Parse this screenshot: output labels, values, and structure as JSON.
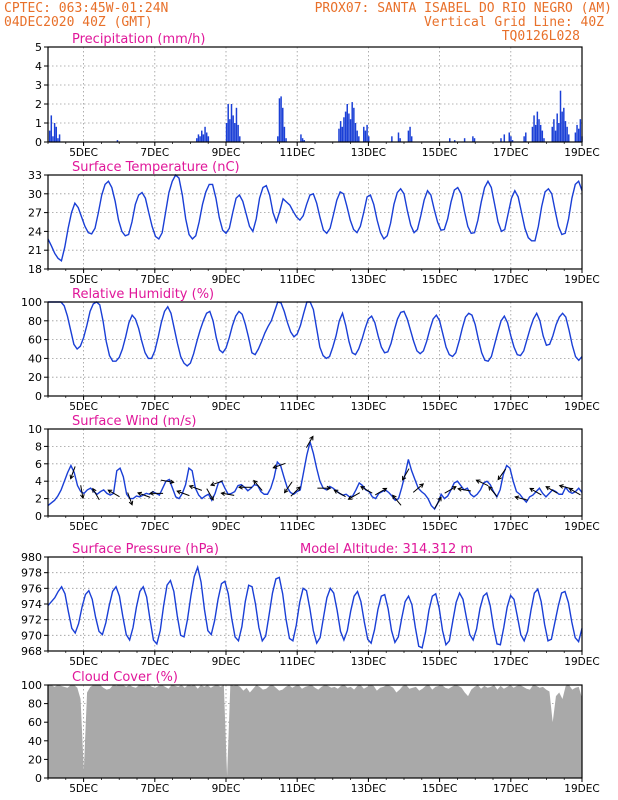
{
  "header": {
    "line1_left": "CPTEC:  063:45W-01:24N",
    "line1_right": "PROX07: SANTA ISABEL DO RIO NEGRO (AM)",
    "line2_left": "04DEC2020 40Z (GMT)",
    "line2_right": "Vertical Grid Line: 40Z",
    "line3_right": "TQ0126L028",
    "header_color": "#e8702a"
  },
  "colors": {
    "line": "#1a3fd6",
    "bar": "#1a3fd6",
    "title": "#e0179a",
    "cloud": "#a9a9a9",
    "arrow": "#000000"
  },
  "x_axis": {
    "start_day": 4,
    "end_day": 19,
    "tick_labels": [
      "5DEC",
      "7DEC",
      "9DEC",
      "11DEC",
      "13DEC",
      "15DEC",
      "17DEC",
      "19DEC"
    ],
    "tick_days": [
      5,
      7,
      9,
      11,
      13,
      15,
      17,
      19
    ]
  },
  "chart_data": [
    {
      "type": "bar",
      "title": "Precipitation (mm/h)",
      "ylim": [
        0,
        5
      ],
      "yticks": [
        "0",
        "1",
        "2",
        "3",
        "4",
        "5"
      ],
      "day_range": [
        4,
        19
      ],
      "values": [
        0,
        0.6,
        1.4,
        0.3,
        1.0,
        0.8,
        0.2,
        0.4,
        0,
        0,
        0,
        0,
        0,
        0,
        0,
        0,
        0,
        0,
        0,
        0,
        0,
        0,
        0,
        0,
        0,
        0,
        0,
        0,
        0,
        0,
        0,
        0,
        0,
        0,
        0,
        0,
        0,
        0,
        0,
        0,
        0,
        0,
        0.1,
        0,
        0,
        0,
        0,
        0,
        0,
        0,
        0,
        0,
        0,
        0,
        0,
        0,
        0,
        0,
        0,
        0,
        0,
        0,
        0,
        0,
        0,
        0,
        0,
        0,
        0,
        0,
        0,
        0,
        0,
        0,
        0,
        0,
        0,
        0,
        0,
        0,
        0,
        0,
        0,
        0,
        0,
        0,
        0,
        0,
        0,
        0,
        0.2,
        0.4,
        0.3,
        0.6,
        0.4,
        0.8,
        0.5,
        0.3,
        0,
        0,
        0,
        0,
        0,
        0,
        0,
        0,
        0,
        0,
        1.0,
        2.0,
        1.2,
        2.0,
        1.4,
        1.0,
        1.8,
        0.9,
        0.3,
        0,
        0,
        0,
        0,
        0,
        0,
        0,
        0,
        0,
        0,
        0,
        0,
        0,
        0,
        0,
        0,
        0,
        0,
        0,
        0,
        0,
        0,
        0.3,
        2.3,
        2.4,
        1.8,
        0.8,
        0.2,
        0,
        0,
        0,
        0,
        0,
        0,
        0,
        0,
        0.4,
        0.2,
        0.1,
        0,
        0,
        0,
        0,
        0,
        0,
        0,
        0,
        0,
        0,
        0,
        0,
        0,
        0,
        0,
        0,
        0,
        0,
        0,
        0,
        0.7,
        1.1,
        0.8,
        1.3,
        1.6,
        2.0,
        1.5,
        1.2,
        2.1,
        1.8,
        1.0,
        0.6,
        0.3,
        0,
        0,
        0.8,
        0.6,
        0.9,
        0.3,
        0,
        0,
        0,
        0,
        0,
        0,
        0,
        0,
        0,
        0,
        0,
        0,
        0,
        0.3,
        0,
        0,
        0,
        0.5,
        0.2,
        0,
        0,
        0,
        0,
        0.6,
        0.8,
        0.3,
        0,
        0,
        0,
        0,
        0,
        0,
        0,
        0,
        0,
        0,
        0,
        0,
        0,
        0,
        0,
        0,
        0,
        0,
        0,
        0,
        0,
        0,
        0.2,
        0,
        0,
        0.1,
        0,
        0,
        0,
        0,
        0,
        0.2,
        0,
        0,
        0,
        0,
        0.3,
        0.2,
        0,
        0,
        0,
        0,
        0,
        0,
        0,
        0,
        0,
        0,
        0,
        0,
        0,
        0,
        0,
        0.2,
        0,
        0.4,
        0,
        0,
        0.5,
        0.3,
        0.1,
        0,
        0,
        0,
        0,
        0,
        0,
        0.3,
        0.5,
        0,
        0,
        0,
        0.8,
        1.4,
        0.9,
        1.6,
        1.2,
        0.9,
        0.6,
        0.2,
        0,
        0,
        0,
        0,
        0.8,
        1.2,
        0.6,
        1.5,
        1.0,
        2.7,
        1.6,
        1.8,
        1.1,
        0.8,
        0.4,
        0,
        0,
        0,
        0.5,
        0.9,
        0.7,
        1.2,
        0.3
      ]
    },
    {
      "type": "line",
      "title": "Surface Temperature (nC)",
      "ylim": [
        18,
        33
      ],
      "yticks": [
        "18",
        "21",
        "24",
        "27",
        "30",
        "33"
      ],
      "day_range": [
        4,
        19
      ],
      "values": [
        22.8,
        21.7,
        20.5,
        19.7,
        19.3,
        21.5,
        24.5,
        27.0,
        28.5,
        27.8,
        26.3,
        24.8,
        23.8,
        23.6,
        24.5,
        27.0,
        29.8,
        31.5,
        32.0,
        31.0,
        28.8,
        25.8,
        24.0,
        23.3,
        23.5,
        25.5,
        28.3,
        29.8,
        30.2,
        29.3,
        27.0,
        24.8,
        23.2,
        22.8,
        23.8,
        27.0,
        30.2,
        32.0,
        33.0,
        32.5,
        29.8,
        26.0,
        23.5,
        22.8,
        23.3,
        25.5,
        28.3,
        30.3,
        31.5,
        31.5,
        29.3,
        26.2,
        24.2,
        23.7,
        24.5,
        27.0,
        29.3,
        29.8,
        28.8,
        26.8,
        24.8,
        24.0,
        26.0,
        29.3,
        31.0,
        31.3,
        29.8,
        27.0,
        25.5,
        27.2,
        29.2,
        28.7,
        28.2,
        27.2,
        26.3,
        25.8,
        26.5,
        28.3,
        29.8,
        30.0,
        28.5,
        26.2,
        24.2,
        23.7,
        24.5,
        26.7,
        29.0,
        30.3,
        30.0,
        28.0,
        25.8,
        24.3,
        23.8,
        24.8,
        27.0,
        29.5,
        29.8,
        28.3,
        25.8,
        23.8,
        22.8,
        23.3,
        25.3,
        28.3,
        30.2,
        30.8,
        30.0,
        27.3,
        25.0,
        23.8,
        24.3,
        26.5,
        29.0,
        30.5,
        29.8,
        27.5,
        25.5,
        24.2,
        24.3,
        26.0,
        28.7,
        30.6,
        31.0,
        30.0,
        27.2,
        24.8,
        23.7,
        23.8,
        25.8,
        28.7,
        31.0,
        32.0,
        31.0,
        28.3,
        25.5,
        24.0,
        24.3,
        26.8,
        29.3,
        30.5,
        29.5,
        27.0,
        24.5,
        23.0,
        22.5,
        22.5,
        24.8,
        28.0,
        30.3,
        30.8,
        30.0,
        27.3,
        24.8,
        23.5,
        23.7,
        26.0,
        29.3,
        31.5,
        32.0,
        30.5
      ]
    },
    {
      "type": "line",
      "title": "Relative Humidity (%)",
      "ylim": [
        0,
        100
      ],
      "yticks": [
        "0",
        "20",
        "40",
        "60",
        "80",
        "100"
      ],
      "day_range": [
        4,
        19
      ],
      "values": [
        100,
        100,
        100,
        100,
        100,
        96,
        85,
        70,
        55,
        50,
        53,
        62,
        75,
        90,
        98,
        100,
        97,
        80,
        58,
        43,
        37,
        37,
        41,
        50,
        63,
        78,
        86,
        82,
        72,
        58,
        46,
        40,
        40,
        48,
        62,
        78,
        90,
        95,
        88,
        72,
        56,
        42,
        35,
        32,
        35,
        45,
        58,
        70,
        80,
        88,
        90,
        80,
        62,
        49,
        46,
        51,
        62,
        75,
        85,
        90,
        87,
        76,
        62,
        46,
        44,
        50,
        58,
        67,
        74,
        80,
        90,
        100,
        99,
        90,
        78,
        68,
        63,
        66,
        75,
        88,
        100,
        100,
        92,
        72,
        52,
        43,
        40,
        42,
        52,
        64,
        80,
        88,
        75,
        58,
        46,
        44,
        50,
        60,
        72,
        82,
        85,
        78,
        64,
        52,
        46,
        47,
        56,
        70,
        82,
        89,
        90,
        82,
        70,
        58,
        48,
        45,
        48,
        58,
        71,
        82,
        86,
        80,
        66,
        52,
        44,
        42,
        46,
        58,
        72,
        84,
        88,
        86,
        76,
        60,
        46,
        38,
        37,
        42,
        55,
        68,
        80,
        85,
        78,
        64,
        52,
        44,
        43,
        48,
        60,
        72,
        82,
        88,
        80,
        64,
        54,
        55,
        64,
        76,
        84,
        88,
        84,
        70,
        54,
        42,
        38,
        42
      ]
    },
    {
      "type": "line",
      "title": "Surface Wind (m/s)",
      "ylim": [
        0,
        10
      ],
      "yticks": [
        "0",
        "2",
        "4",
        "6",
        "8",
        "10"
      ],
      "day_range": [
        4,
        19
      ],
      "values": [
        1.2,
        1.5,
        1.8,
        2.3,
        3.0,
        4.0,
        5.0,
        5.8,
        5.0,
        3.5,
        2.8,
        2.6,
        3.0,
        3.2,
        2.8,
        2.5,
        2.8,
        3.0,
        2.6,
        2.4,
        2.6,
        5.2,
        5.5,
        4.5,
        2.5,
        2.0,
        2.0,
        2.3,
        2.2,
        2.4,
        2.6,
        2.5,
        2.8,
        2.6,
        2.4,
        3.2,
        4.0,
        4.2,
        3.2,
        2.2,
        2.0,
        2.6,
        3.6,
        5.5,
        5.2,
        3.2,
        2.4,
        2.0,
        2.3,
        2.5,
        1.8,
        2.6,
        3.8,
        4.0,
        3.2,
        2.5,
        2.6,
        2.8,
        3.5,
        3.6,
        3.3,
        2.9,
        3.2,
        3.6,
        3.5,
        2.8,
        2.5,
        2.5,
        3.2,
        4.4,
        6.2,
        5.8,
        4.5,
        3.3,
        2.7,
        2.5,
        2.8,
        3.0,
        5.0,
        7.0,
        8.5,
        7.2,
        5.5,
        4.0,
        3.2,
        3.0,
        3.4,
        3.2,
        2.9,
        2.6,
        2.4,
        2.5,
        2.2,
        2.3,
        3.0,
        3.8,
        3.5,
        3.0,
        2.8,
        2.2,
        2.0,
        2.6,
        2.8,
        3.0,
        2.7,
        2.3,
        1.8,
        2.0,
        3.3,
        4.8,
        6.5,
        5.2,
        4.2,
        3.2,
        2.8,
        2.5,
        2.0,
        1.2,
        0.8,
        1.5,
        2.5,
        2.0,
        2.3,
        3.0,
        3.8,
        4.0,
        3.5,
        3.0,
        3.2,
        2.5,
        2.2,
        2.5,
        3.0,
        3.8,
        4.0,
        3.6,
        2.8,
        2.2,
        3.0,
        4.8,
        5.8,
        5.5,
        4.0,
        2.8,
        2.5,
        2.0,
        1.6,
        2.2,
        2.4,
        2.8,
        3.2,
        2.6,
        2.2,
        2.6,
        3.0,
        2.8,
        2.5,
        2.5,
        3.3,
        2.8,
        2.6,
        2.8,
        3.2,
        2.7
      ],
      "arrows": [
        {
          "day": 4.7,
          "dir": 200
        },
        {
          "day": 4.95,
          "dir": 170
        },
        {
          "day": 5.35,
          "dir": 330
        },
        {
          "day": 5.85,
          "dir": 300
        },
        {
          "day": 6.3,
          "dir": 160
        },
        {
          "day": 6.7,
          "dir": 290
        },
        {
          "day": 7.05,
          "dir": 270
        },
        {
          "day": 7.35,
          "dir": 100
        },
        {
          "day": 7.8,
          "dir": 290
        },
        {
          "day": 8.15,
          "dir": 290
        },
        {
          "day": 8.55,
          "dir": 150
        },
        {
          "day": 8.75,
          "dir": 250
        },
        {
          "day": 9.05,
          "dir": 280
        },
        {
          "day": 9.55,
          "dir": 270
        },
        {
          "day": 9.9,
          "dir": 320
        },
        {
          "day": 10.5,
          "dir": 250
        },
        {
          "day": 10.75,
          "dir": 215
        },
        {
          "day": 10.95,
          "dir": 45
        },
        {
          "day": 11.35,
          "dir": 30
        },
        {
          "day": 11.75,
          "dir": 90
        },
        {
          "day": 12.2,
          "dir": 300
        },
        {
          "day": 12.6,
          "dir": 240
        },
        {
          "day": 12.95,
          "dir": 300
        },
        {
          "day": 13.35,
          "dir": 60
        },
        {
          "day": 13.8,
          "dir": 320
        },
        {
          "day": 14.05,
          "dir": 210
        },
        {
          "day": 14.4,
          "dir": 50
        },
        {
          "day": 14.95,
          "dir": 30
        },
        {
          "day": 15.3,
          "dir": 60
        },
        {
          "day": 15.7,
          "dir": 280
        },
        {
          "day": 16.2,
          "dir": 295
        },
        {
          "day": 16.5,
          "dir": 320
        },
        {
          "day": 16.75,
          "dir": 215
        },
        {
          "day": 17.3,
          "dir": 285
        },
        {
          "day": 17.7,
          "dir": 300
        },
        {
          "day": 18.15,
          "dir": 300
        },
        {
          "day": 18.55,
          "dir": 285
        },
        {
          "day": 18.8,
          "dir": 300
        }
      ]
    },
    {
      "type": "line",
      "title": "Surface Pressure (hPa)",
      "subtitle": "Model Altitude: 314.312 m",
      "ylim": [
        968,
        980
      ],
      "yticks": [
        "968",
        "970",
        "972",
        "974",
        "976",
        "978",
        "980"
      ],
      "day_range": [
        4,
        19
      ],
      "values": [
        973.8,
        974.3,
        974.8,
        975.6,
        976.2,
        975.3,
        973.0,
        970.9,
        970.3,
        971.5,
        973.6,
        975.2,
        975.7,
        974.6,
        972.3,
        970.5,
        970.1,
        971.6,
        973.8,
        975.6,
        976.2,
        975.0,
        972.4,
        970.1,
        969.4,
        971.0,
        973.6,
        975.6,
        976.2,
        974.9,
        972.0,
        969.4,
        968.9,
        970.6,
        973.8,
        976.4,
        977.0,
        975.6,
        972.5,
        970.0,
        969.8,
        972.0,
        975.0,
        977.5,
        978.7,
        976.8,
        973.3,
        970.6,
        970.1,
        971.9,
        974.6,
        976.6,
        976.9,
        975.3,
        972.2,
        969.8,
        969.3,
        971.1,
        974.3,
        976.4,
        976.2,
        974.0,
        971.0,
        969.3,
        969.9,
        972.6,
        975.4,
        977.2,
        977.4,
        975.3,
        972.0,
        969.6,
        969.3,
        971.3,
        974.2,
        976.0,
        975.7,
        973.4,
        970.6,
        969.0,
        969.7,
        972.3,
        974.8,
        976.0,
        975.4,
        973.2,
        970.5,
        969.4,
        970.6,
        973.1,
        975.0,
        975.6,
        974.3,
        971.7,
        969.5,
        969.0,
        970.7,
        973.3,
        975.0,
        975.2,
        973.4,
        970.6,
        969.1,
        969.8,
        972.2,
        974.3,
        975.0,
        973.9,
        971.0,
        968.6,
        968.4,
        970.4,
        973.2,
        975.0,
        975.3,
        973.5,
        970.6,
        968.8,
        969.3,
        971.8,
        974.2,
        975.4,
        974.6,
        972.3,
        970.1,
        969.4,
        970.8,
        973.4,
        975.0,
        975.4,
        973.8,
        971.0,
        968.9,
        968.8,
        971.0,
        973.6,
        975.1,
        974.6,
        972.4,
        970.1,
        969.3,
        970.5,
        973.2,
        975.4,
        975.9,
        974.3,
        971.4,
        969.3,
        969.5,
        971.6,
        973.7,
        975.4,
        975.6,
        974.2,
        971.7,
        969.7,
        969.2,
        970.9
      ]
    },
    {
      "type": "area",
      "title": "Cloud Cover (%)",
      "ylim": [
        0,
        100
      ],
      "yticks": [
        "0",
        "20",
        "40",
        "60",
        "80",
        "100"
      ],
      "day_range": [
        4,
        19
      ],
      "values": [
        100,
        100,
        98,
        100,
        99,
        98,
        97,
        100,
        100,
        97,
        85,
        8,
        92,
        98,
        100,
        100,
        100,
        97,
        95,
        96,
        100,
        99,
        100,
        100,
        98,
        100,
        98,
        97,
        100,
        100,
        99,
        100,
        98,
        97,
        99,
        100,
        98,
        96,
        100,
        99,
        98,
        100,
        97,
        100,
        99,
        100,
        96,
        100,
        98,
        100,
        97,
        99,
        100,
        98,
        100,
        2,
        100,
        99,
        100,
        98,
        94,
        97,
        92,
        96,
        100,
        98,
        95,
        96,
        99,
        100,
        97,
        94,
        95,
        98,
        100,
        97,
        99,
        100,
        96,
        98,
        99,
        100,
        97,
        95,
        98,
        100,
        99,
        97,
        98,
        96,
        99,
        100,
        97,
        98,
        95,
        99,
        100,
        96,
        98,
        100,
        99,
        94,
        97,
        98,
        100,
        99,
        97,
        92,
        95,
        99,
        100,
        96,
        97,
        98,
        94,
        96,
        99,
        100,
        95,
        98,
        99,
        100,
        97,
        96,
        98,
        100,
        99,
        97,
        92,
        88,
        95,
        98,
        100,
        96,
        99,
        97,
        98,
        100,
        95,
        99,
        96,
        98,
        100,
        97,
        99,
        100,
        98,
        96,
        95,
        100,
        99,
        97,
        98,
        95,
        93,
        60,
        88,
        92,
        85,
        99,
        100,
        95,
        97,
        98,
        86
      ]
    }
  ]
}
